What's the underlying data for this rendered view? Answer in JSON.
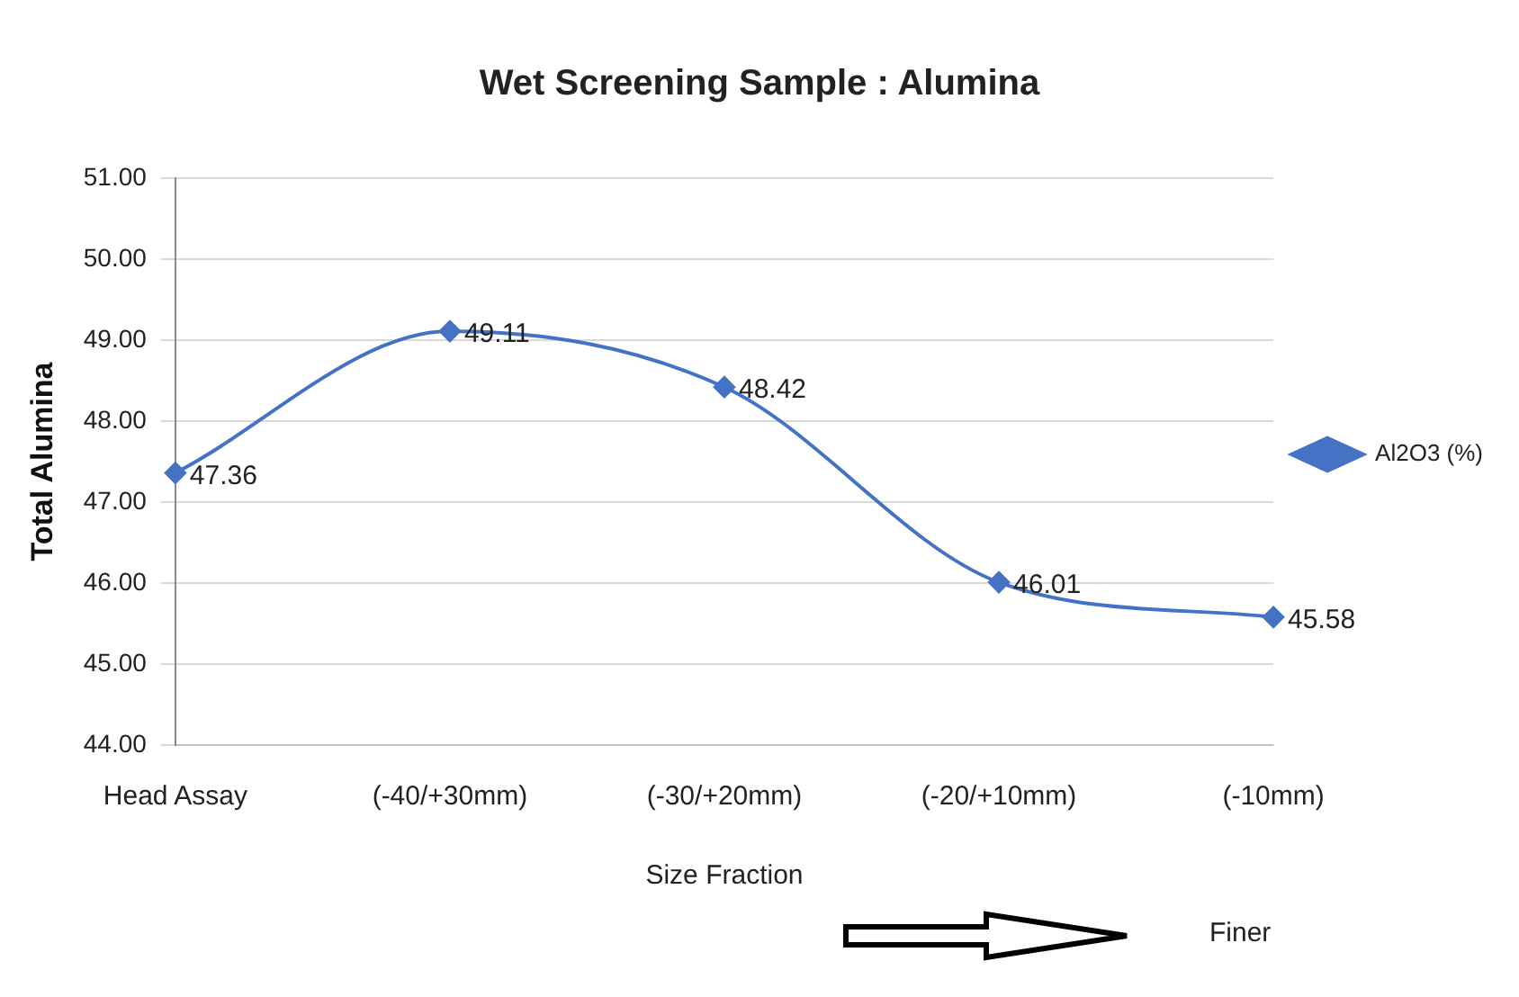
{
  "chart_data": {
    "type": "line",
    "title": "Wet Screening Sample : Alumina",
    "xlabel": "Size Fraction",
    "ylabel": "Total Alumina",
    "categories": [
      "Head Assay",
      "(-40/+30mm)",
      "(-30/+20mm)",
      "(-20/+10mm)",
      "(-10mm)"
    ],
    "series": [
      {
        "name": "Al2O3 (%)",
        "color": "#4472c4",
        "values": [
          47.36,
          49.11,
          48.42,
          46.01,
          45.58
        ]
      }
    ],
    "ylim": [
      44,
      51
    ],
    "yticks": [
      {
        "value": 44,
        "label": "44.00"
      },
      {
        "value": 45,
        "label": "45.00"
      },
      {
        "value": 46,
        "label": "46.00"
      },
      {
        "value": 47,
        "label": "47.00"
      },
      {
        "value": 48,
        "label": "48.00"
      },
      {
        "value": 49,
        "label": "49.00"
      },
      {
        "value": 50,
        "label": "50.00"
      },
      {
        "value": 51,
        "label": "51.00"
      }
    ],
    "grid": "y",
    "legend": "right",
    "marker": "diamond",
    "line_style": "solid",
    "data_labels": true,
    "annotations": [
      "Finer"
    ]
  }
}
